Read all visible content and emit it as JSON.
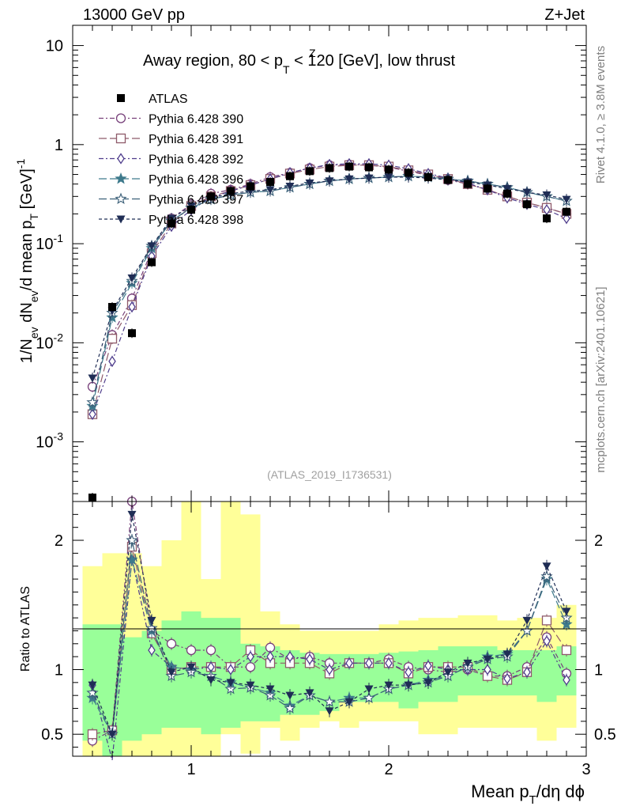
{
  "header": {
    "left": "13000 GeV pp",
    "right": "Z+Jet",
    "title_prefix": "Away region, 80 < p",
    "title_sub": "T",
    "title_sup": "Z",
    "title_suffix": " < 120 [GeV], low thrust",
    "watermark": "(ATLAS_2019_I1736531)",
    "side_rivet": "Rivet 4.1.0, ≥ 3.8M events",
    "side_mcplots": "mcplots.cern.ch [arXiv:2401.10621]"
  },
  "axes": {
    "ylabel_main": "1/N_ev dN_ev/d mean p_T [GeV]^-1",
    "ylabel_ratio": "Ratio to ATLAS",
    "xlabel": "Mean p_T/dη dϕ",
    "x_ticks": [
      "1",
      "2",
      "3"
    ],
    "y_main_ticks": [
      "10^-3",
      "10^-2",
      "10^-1",
      "1",
      "10"
    ],
    "y_ratio_ticks": [
      "0.5",
      "1",
      "2"
    ]
  },
  "legend": [
    "ATLAS",
    "Pythia 6.428 390",
    "Pythia 6.428 391",
    "Pythia 6.428 392",
    "Pythia 6.428 396",
    "Pythia 6.428 397",
    "Pythia 6.428 398"
  ],
  "chart_data": {
    "type": "scatter",
    "title": "Away region, 80 < pT^Z < 120 [GeV], low thrust",
    "xlabel": "Mean pT/dη dϕ",
    "ylabel": "1/Nev dNev/d mean pT [GeV]^-1",
    "xlim": [
      0.4,
      3.0
    ],
    "ylim": [
      0.00025,
      16
    ],
    "yscale": "log",
    "ratio_ylim": [
      0.33,
      2.3
    ],
    "x": [
      0.5,
      0.6,
      0.7,
      0.8,
      0.9,
      1.0,
      1.1,
      1.2,
      1.3,
      1.4,
      1.5,
      1.6,
      1.7,
      1.8,
      1.9,
      2.0,
      2.1,
      2.2,
      2.3,
      2.4,
      2.5,
      2.6,
      2.7,
      2.8,
      2.9
    ],
    "data": {
      "name": "ATLAS",
      "values": [
        0.00026,
        0.023,
        0.0125,
        0.065,
        0.16,
        0.22,
        0.3,
        0.34,
        0.38,
        0.42,
        0.48,
        0.54,
        0.58,
        0.6,
        0.59,
        0.56,
        0.52,
        0.47,
        0.44,
        0.4,
        0.36,
        0.32,
        0.25,
        0.18,
        0.21
      ],
      "band_inner_lo": [
        0.45,
        0.28,
        0.45,
        0.5,
        0.55,
        0.55,
        0.5,
        0.55,
        0.6,
        0.6,
        0.65,
        0.65,
        0.68,
        0.75,
        0.75,
        0.75,
        0.7,
        0.75,
        0.75,
        0.8,
        0.8,
        0.8,
        0.8,
        0.75,
        0.8
      ],
      "band_inner_hi": [
        1.35,
        1.35,
        1.25,
        1.3,
        1.38,
        1.45,
        1.4,
        1.4,
        1.2,
        1.18,
        1.15,
        1.13,
        1.12,
        1.12,
        1.12,
        1.13,
        1.14,
        1.15,
        1.18,
        1.18,
        1.18,
        1.15,
        1.15,
        1.15,
        1.18
      ],
      "band_outer_lo": [
        0.28,
        0.33,
        0.33,
        0.33,
        0.33,
        0.3,
        0.33,
        0.5,
        0.35,
        0.55,
        0.45,
        0.55,
        0.6,
        0.55,
        0.6,
        0.6,
        0.6,
        0.5,
        0.5,
        0.55,
        0.55,
        0.55,
        0.55,
        0.45,
        0.55
      ],
      "band_outer_hi": [
        1.8,
        1.9,
        1.9,
        1.8,
        2.0,
        2.3,
        1.7,
        2.3,
        2.2,
        1.45,
        1.35,
        1.3,
        1.3,
        1.3,
        1.3,
        1.35,
        1.38,
        1.4,
        1.4,
        1.42,
        1.42,
        1.38,
        1.4,
        1.4,
        1.5
      ]
    },
    "series": [
      {
        "name": "Pythia 6.428 390",
        "color": "#77407a",
        "dash": "6,3,2,3",
        "marker": "circle-open",
        "values": [
          0.0036,
          0.012,
          0.028,
          0.085,
          0.18,
          0.25,
          0.32,
          0.35,
          0.4,
          0.47,
          0.52,
          0.58,
          0.62,
          0.63,
          0.62,
          0.59,
          0.54,
          0.49,
          0.44,
          0.4,
          0.35,
          0.3,
          0.26,
          0.23,
          0.2
        ],
        "ratio": [
          0.45,
          0.53,
          2.3,
          1.3,
          1.2,
          1.15,
          1.15,
          1.02,
          1.02,
          1.17,
          1.08,
          1.1,
          1.05,
          1.05,
          1.05,
          1.08,
          1.02,
          1.0,
          0.98,
          1.0,
          0.95,
          0.95,
          1.02,
          1.25,
          0.97
        ]
      },
      {
        "name": "Pythia 6.428 391",
        "color": "#8e5a6a",
        "dash": "10,4",
        "marker": "square-open",
        "values": [
          0.0019,
          0.011,
          0.024,
          0.08,
          0.16,
          0.24,
          0.3,
          0.34,
          0.39,
          0.45,
          0.51,
          0.56,
          0.6,
          0.62,
          0.62,
          0.6,
          0.55,
          0.5,
          0.45,
          0.4,
          0.35,
          0.3,
          0.26,
          0.23,
          0.2
        ],
        "ratio": [
          0.5,
          0.53,
          1.95,
          1.28,
          1.0,
          1.02,
          1.02,
          1.02,
          1.15,
          1.05,
          1.05,
          1.05,
          0.97,
          1.05,
          1.05,
          1.05,
          0.97,
          1.02,
          1.02,
          1.02,
          0.95,
          0.92,
          0.98,
          1.38,
          1.15
        ]
      },
      {
        "name": "Pythia 6.428 392",
        "color": "#4f3d8c",
        "dash": "6,3,2,3",
        "marker": "diamond-open",
        "values": [
          0.0019,
          0.0065,
          0.023,
          0.075,
          0.15,
          0.22,
          0.29,
          0.34,
          0.39,
          0.45,
          0.52,
          0.58,
          0.63,
          0.64,
          0.64,
          0.62,
          0.57,
          0.51,
          0.46,
          0.41,
          0.35,
          0.29,
          0.25,
          0.22,
          0.18
        ],
        "ratio": [
          0.88,
          0.3,
          1.85,
          1.15,
          1.02,
          1.0,
          1.02,
          1.0,
          1.1,
          1.1,
          1.1,
          1.08,
          1.0,
          1.05,
          1.05,
          1.05,
          0.98,
          1.03,
          1.0,
          1.0,
          1.0,
          0.93,
          0.98,
          1.22,
          0.92
        ]
      },
      {
        "name": "Pythia 6.428 396",
        "color": "#3e7a8c",
        "dash": "10,4",
        "marker": "star-filled",
        "values": [
          0.0023,
          0.018,
          0.04,
          0.09,
          0.17,
          0.23,
          0.28,
          0.31,
          0.33,
          0.34,
          0.37,
          0.4,
          0.43,
          0.45,
          0.46,
          0.47,
          0.48,
          0.47,
          0.45,
          0.43,
          0.4,
          0.37,
          0.33,
          0.3,
          0.27
        ],
        "ratio": [
          0.78,
          0.5,
          1.85,
          1.3,
          1.02,
          1.0,
          0.95,
          0.9,
          0.86,
          0.82,
          0.72,
          0.8,
          0.75,
          0.78,
          0.78,
          0.85,
          0.88,
          0.92,
          0.95,
          1.02,
          1.1,
          1.12,
          1.3,
          1.7,
          1.35
        ]
      },
      {
        "name": "Pythia 6.428 397",
        "color": "#3b5f78",
        "dash": "10,4",
        "marker": "star-open",
        "values": [
          0.0025,
          0.02,
          0.042,
          0.095,
          0.17,
          0.23,
          0.28,
          0.31,
          0.33,
          0.34,
          0.37,
          0.4,
          0.43,
          0.45,
          0.46,
          0.47,
          0.48,
          0.47,
          0.45,
          0.43,
          0.4,
          0.37,
          0.33,
          0.3,
          0.27
        ],
        "ratio": [
          0.82,
          0.5,
          2.0,
          1.32,
          0.95,
          0.98,
          0.95,
          0.85,
          0.86,
          0.8,
          0.7,
          0.8,
          0.75,
          0.75,
          0.78,
          0.85,
          0.88,
          0.9,
          0.95,
          1.02,
          1.08,
          1.1,
          1.3,
          1.72,
          1.4
        ]
      },
      {
        "name": "Pythia 6.428 398",
        "color": "#1f2d55",
        "dash": "4,3",
        "marker": "triangle-down-filled",
        "values": [
          0.0044,
          0.021,
          0.045,
          0.095,
          0.18,
          0.24,
          0.29,
          0.32,
          0.34,
          0.35,
          0.38,
          0.41,
          0.43,
          0.45,
          0.46,
          0.47,
          0.47,
          0.46,
          0.44,
          0.42,
          0.39,
          0.36,
          0.33,
          0.31,
          0.28
        ],
        "ratio": [
          0.88,
          0.5,
          2.2,
          1.38,
          0.98,
          1.02,
          0.92,
          0.9,
          0.88,
          0.85,
          0.8,
          0.82,
          0.68,
          0.75,
          0.85,
          0.88,
          0.88,
          0.9,
          0.98,
          1.05,
          1.08,
          1.12,
          1.38,
          1.8,
          1.45
        ]
      }
    ]
  }
}
